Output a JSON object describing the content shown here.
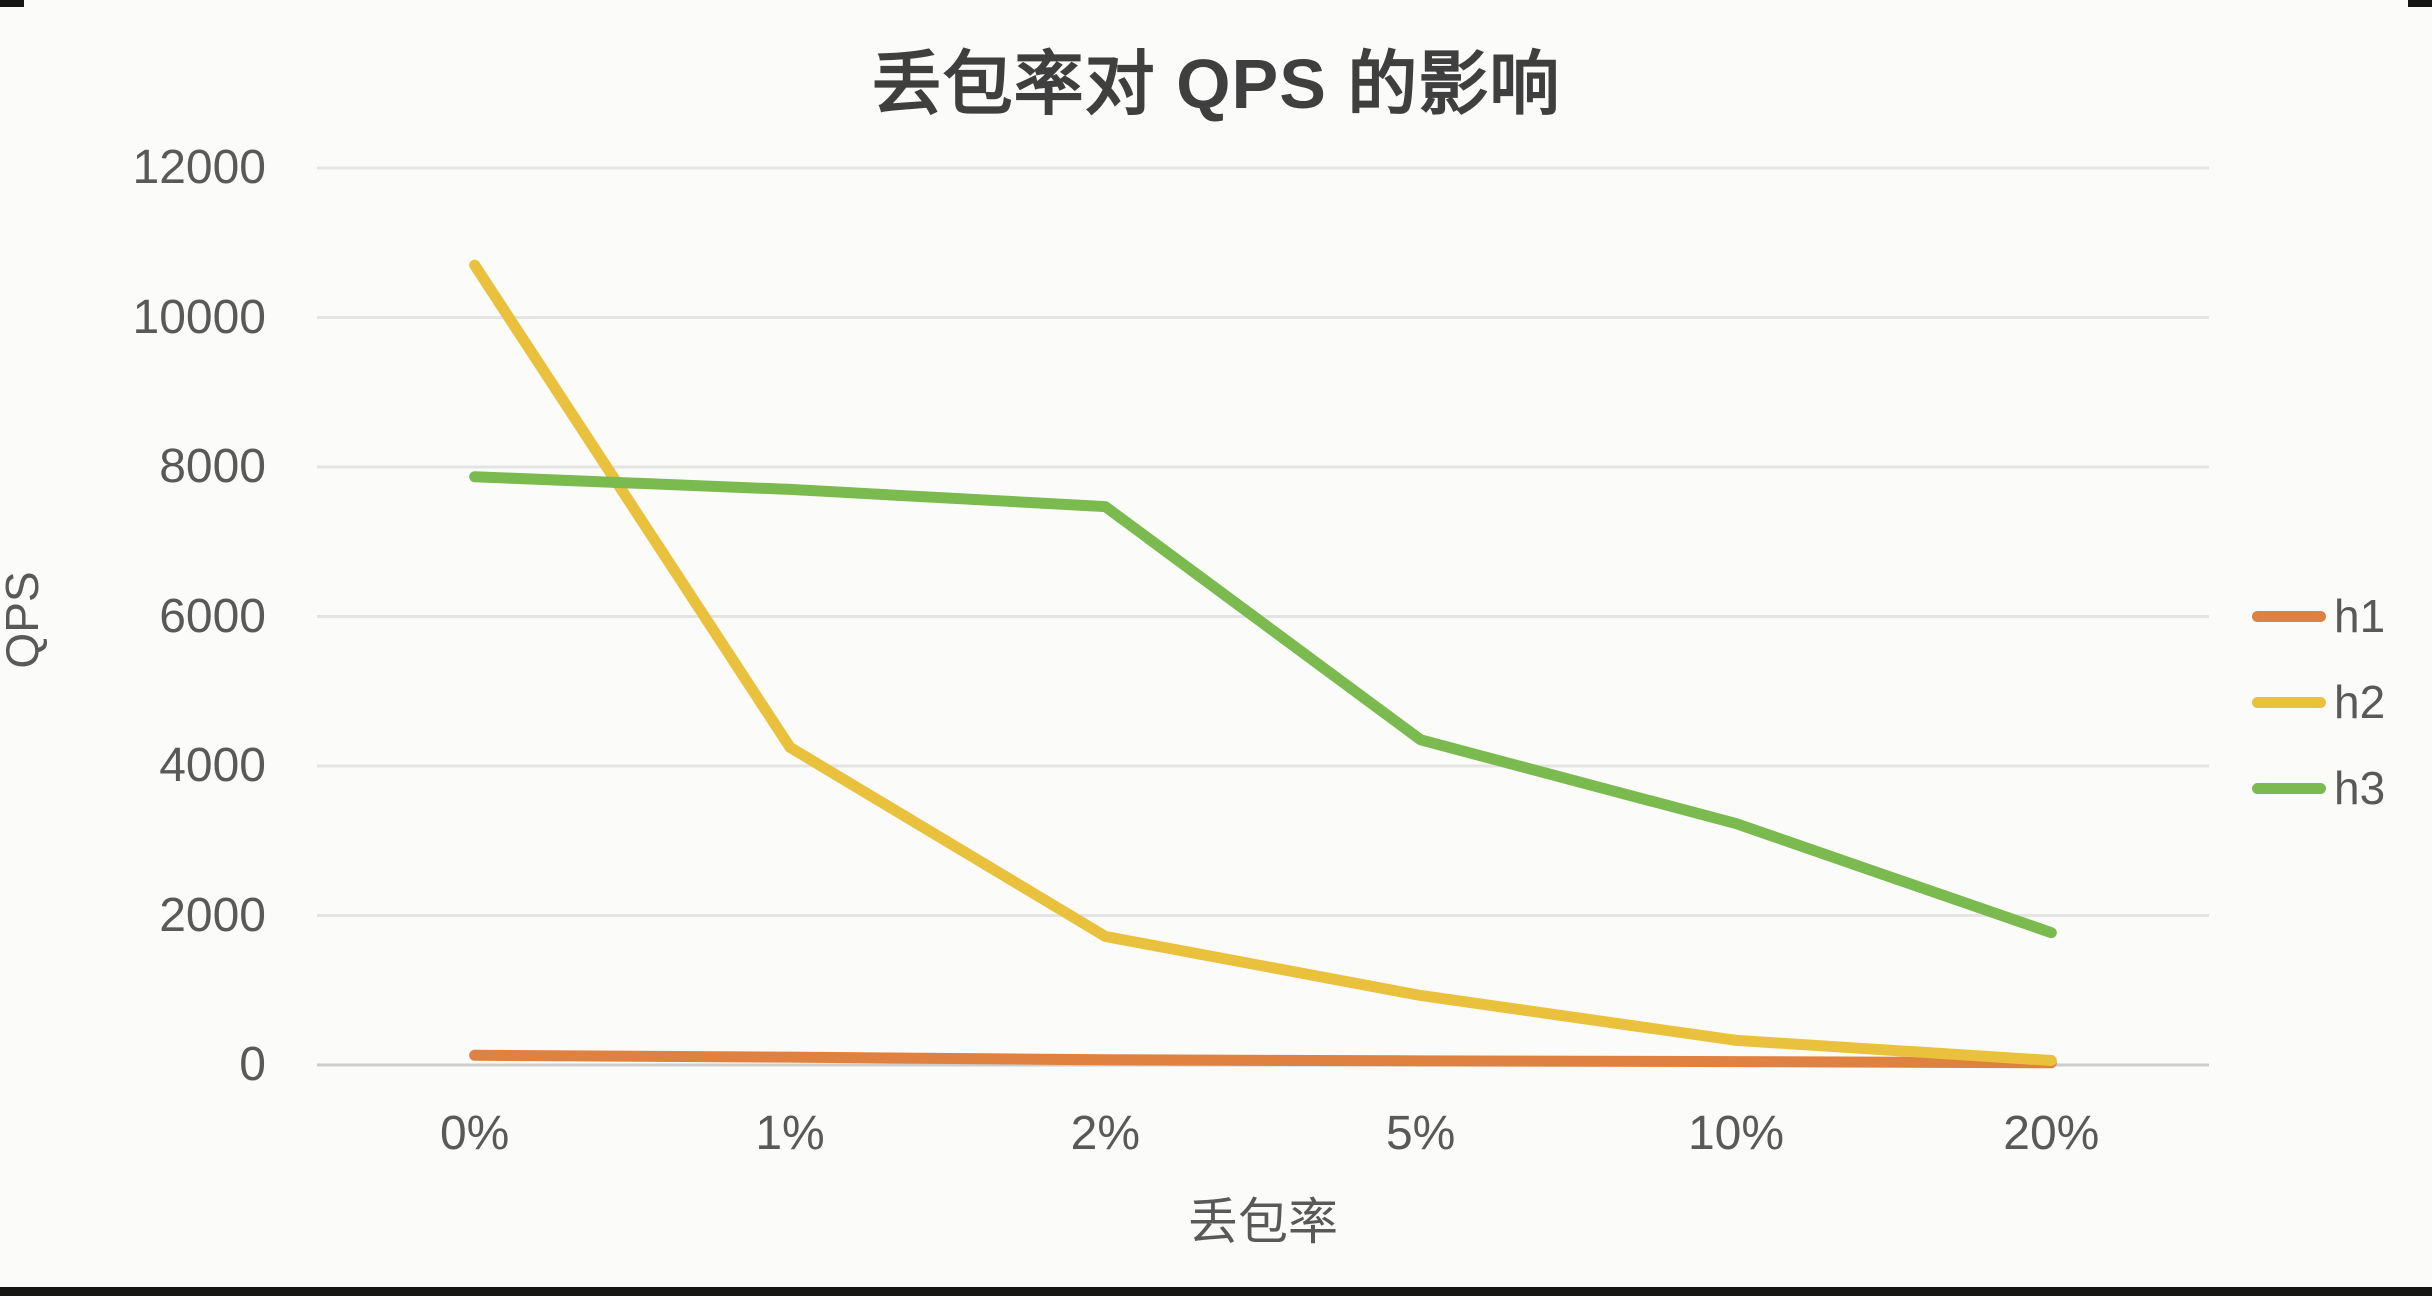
{
  "title": "丢包率对 QPS 的影响",
  "chart_data": {
    "type": "line",
    "title": "丢包率对 QPS 的影响",
    "xlabel": "丢包率",
    "ylabel": "QPS",
    "categories": [
      "0%",
      "1%",
      "2%",
      "5%",
      "10%",
      "20%"
    ],
    "series": [
      {
        "name": "h1",
        "color": "#df8140",
        "values": [
          130,
          105,
          70,
          55,
          45,
          30
        ]
      },
      {
        "name": "h2",
        "color": "#e9c13c",
        "values": [
          10700,
          4250,
          1720,
          930,
          330,
          60
        ]
      },
      {
        "name": "h3",
        "color": "#7aba4e",
        "values": [
          7870,
          7700,
          7470,
          4350,
          3230,
          1770
        ]
      }
    ],
    "ylim": [
      0,
      12000
    ],
    "yticks": [
      0,
      2000,
      4000,
      6000,
      8000,
      10000,
      12000
    ],
    "grid": true,
    "legend_position": "right"
  },
  "colors": {
    "title_text": "#3f3f3f",
    "axis_text": "#595959",
    "gridline": "#e4e4e4",
    "axis_line": "#cdcdcd",
    "background": "#fbfbf9"
  }
}
